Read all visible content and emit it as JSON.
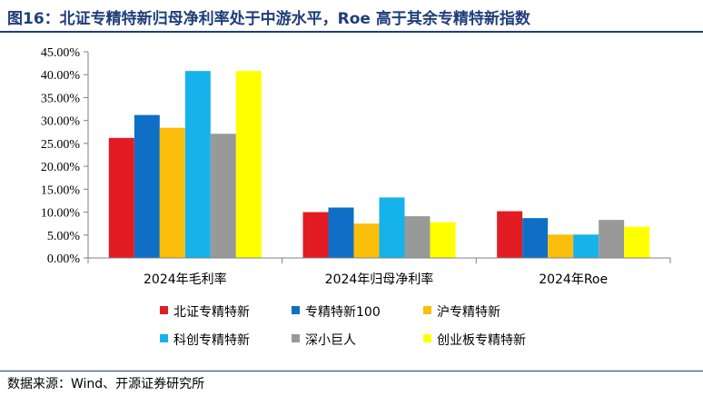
{
  "header": {
    "title": "图16：北证专精特新归母净利率处于中游水平，Roe 高于其余专精特新指数"
  },
  "footer": {
    "source": "数据来源：Wind、开源证券研究所"
  },
  "chart_data": {
    "type": "bar",
    "categories": [
      "2024年毛利率",
      "2024年归母净利率",
      "2024年Roe"
    ],
    "ylim": [
      0,
      45
    ],
    "yticks": [
      "0.00%",
      "5.00%",
      "10.00%",
      "15.00%",
      "20.00%",
      "25.00%",
      "30.00%",
      "35.00%",
      "40.00%",
      "45.00%"
    ],
    "grid": false,
    "legend_position": "bottom",
    "series": [
      {
        "name": "北证专精特新",
        "color": "#e31c23",
        "values": [
          26.2,
          10.0,
          10.2
        ]
      },
      {
        "name": "专精特新100",
        "color": "#0f6fc6",
        "values": [
          31.2,
          11.0,
          8.7
        ]
      },
      {
        "name": "沪专精特新",
        "color": "#fbbf0b",
        "values": [
          28.4,
          7.5,
          5.1
        ]
      },
      {
        "name": "科创专精特新",
        "color": "#16b2ec",
        "values": [
          40.8,
          13.2,
          5.1
        ]
      },
      {
        "name": "深小巨人",
        "color": "#999999",
        "values": [
          27.1,
          9.1,
          8.3
        ]
      },
      {
        "name": "创业板专精特新",
        "color": "#ffff00",
        "values": [
          40.8,
          7.8,
          6.8
        ]
      }
    ]
  }
}
